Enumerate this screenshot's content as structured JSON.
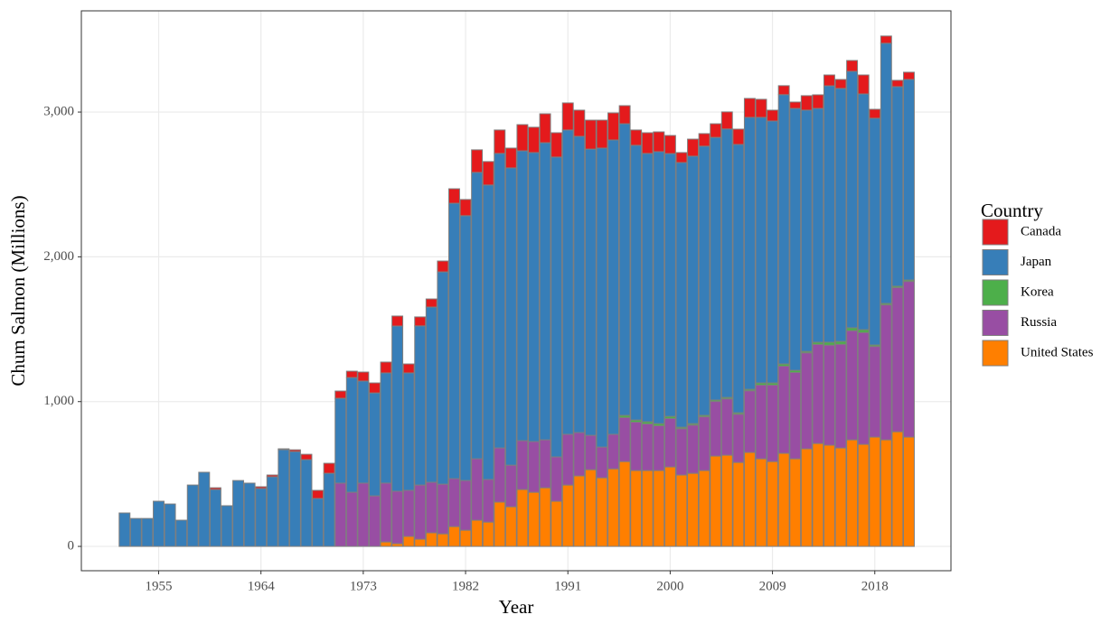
{
  "chart_data": {
    "type": "stacked-bar",
    "x_label": "Year",
    "y_label": "Chum Salmon (Millions)",
    "legend_title": "Country",
    "x": [
      1952,
      1953,
      1954,
      1955,
      1956,
      1957,
      1958,
      1959,
      1960,
      1961,
      1962,
      1963,
      1964,
      1965,
      1966,
      1967,
      1968,
      1969,
      1970,
      1971,
      1972,
      1973,
      1974,
      1975,
      1976,
      1977,
      1978,
      1979,
      1980,
      1981,
      1982,
      1983,
      1984,
      1985,
      1986,
      1987,
      1988,
      1989,
      1990,
      1991,
      1992,
      1993,
      1994,
      1995,
      1996,
      1997,
      1998,
      1999,
      2000,
      2001,
      2002,
      2003,
      2004,
      2005,
      2006,
      2007,
      2008,
      2009,
      2010,
      2011,
      2012,
      2013,
      2014,
      2015,
      2016,
      2017,
      2018,
      2019,
      2020,
      2021
    ],
    "series": [
      {
        "name": "Canada",
        "color": "#e41a1c",
        "values": [
          0,
          0,
          0,
          0,
          0,
          0,
          0,
          0,
          12,
          0,
          0,
          0,
          12,
          12,
          6,
          12,
          37,
          56,
          69,
          50,
          44,
          62,
          69,
          75,
          69,
          62,
          62,
          56,
          75,
          100,
          112,
          156,
          162,
          162,
          137,
          181,
          175,
          200,
          168,
          187,
          181,
          200,
          193,
          187,
          125,
          106,
          143,
          137,
          125,
          69,
          118,
          87,
          94,
          118,
          106,
          131,
          125,
          75,
          62,
          44,
          100,
          94,
          75,
          62,
          75,
          131,
          62,
          50,
          44,
          50
        ]
      },
      {
        "name": "Japan",
        "color": "#377eb8",
        "values": [
          231,
          193,
          193,
          312,
          293,
          181,
          424,
          512,
          393,
          281,
          455,
          437,
          400,
          481,
          668,
          655,
          599,
          331,
          505,
          586,
          792,
          705,
          711,
          761,
          1141,
          811,
          1099,
          1210,
          1466,
          1902,
          1829,
          1978,
          2034,
          2034,
          2053,
          2002,
          1996,
          2052,
          2071,
          2102,
          2046,
          1977,
          2065,
          2033,
          2014,
          1897,
          1853,
          1878,
          1815,
          1828,
          1847,
          1859,
          1814,
          1854,
          1853,
          1878,
          1834,
          1809,
          1860,
          1809,
          1666,
          1615,
          1771,
          1747,
          1771,
          1628,
          1566,
          1797,
          1378,
          1385
        ]
      },
      {
        "name": "Korea",
        "color": "#4daf4a",
        "values": [
          0,
          0,
          0,
          0,
          0,
          0,
          0,
          0,
          0,
          0,
          0,
          0,
          0,
          0,
          0,
          0,
          0,
          0,
          0,
          0,
          0,
          0,
          0,
          0,
          0,
          0,
          0,
          0,
          0,
          0,
          0,
          0,
          0,
          0,
          0,
          0,
          0,
          0,
          0,
          0,
          0,
          0,
          0,
          0,
          15,
          15,
          15,
          15,
          15,
          10,
          10,
          10,
          10,
          10,
          10,
          10,
          15,
          15,
          15,
          15,
          10,
          15,
          20,
          20,
          20,
          20,
          10,
          10,
          10,
          10
        ]
      },
      {
        "name": "Russia",
        "color": "#984ea3",
        "values": [
          0,
          0,
          0,
          0,
          0,
          0,
          0,
          0,
          0,
          0,
          0,
          0,
          0,
          0,
          0,
          0,
          0,
          0,
          0,
          437,
          374,
          437,
          349,
          406,
          362,
          318,
          374,
          349,
          343,
          331,
          343,
          424,
          294,
          374,
          287,
          337,
          350,
          331,
          306,
          350,
          299,
          237,
          212,
          238,
          304,
          334,
          322,
          309,
          334,
          320,
          333,
          371,
          377,
          389,
          333,
          426,
          509,
          528,
          602,
          596,
          663,
          684,
          691,
          716,
          754,
          772,
          626,
          932,
          995,
          1075
        ]
      },
      {
        "name": "United States",
        "color": "#ff7f00",
        "values": [
          0,
          0,
          0,
          0,
          0,
          0,
          0,
          0,
          0,
          0,
          0,
          0,
          0,
          0,
          0,
          0,
          0,
          0,
          0,
          0,
          0,
          0,
          0,
          31,
          19,
          69,
          50,
          94,
          87,
          137,
          112,
          181,
          168,
          306,
          274,
          393,
          374,
          405,
          312,
          424,
          487,
          530,
          474,
          536,
          586,
          524,
          524,
          524,
          549,
          493,
          505,
          524,
          624,
          630,
          580,
          649,
          605,
          586,
          643,
          605,
          674,
          711,
          699,
          680,
          736,
          705,
          755,
          736,
          792,
          755
        ]
      }
    ],
    "xlim": [
      1948.2,
      2024.7
    ],
    "xticks": [
      1955,
      1964,
      1973,
      1982,
      1991,
      2000,
      2009,
      2018
    ],
    "ylim": [
      -168,
      3699
    ],
    "yticks": [
      0,
      {
        "value": 1000,
        "label": "1,000"
      },
      {
        "value": 2000,
        "label": "2,000"
      },
      {
        "value": 3000,
        "label": "3,000"
      }
    ],
    "grid": true,
    "legend": "right"
  }
}
